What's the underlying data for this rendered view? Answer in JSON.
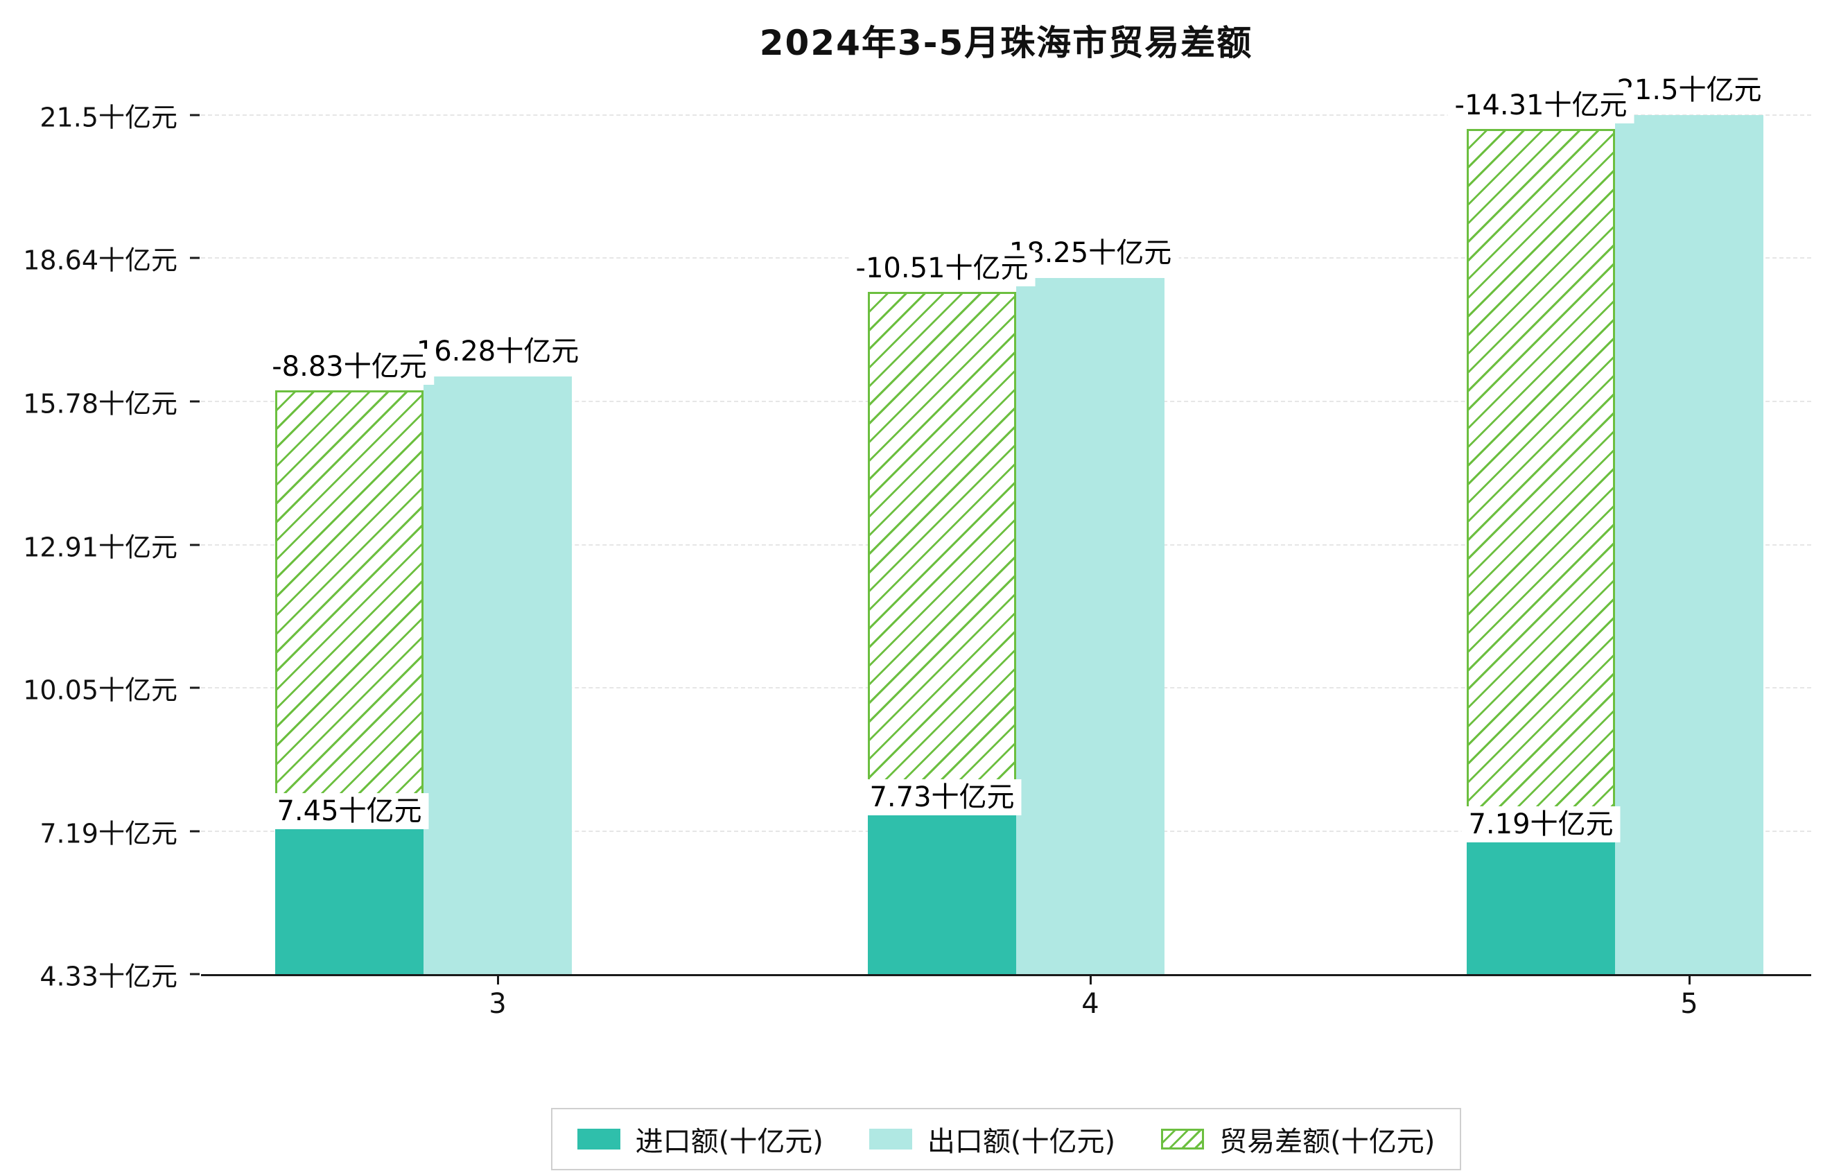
{
  "chart_data": {
    "type": "bar",
    "title": "2024年3-5月珠海市贸易差额",
    "categories": [
      "3",
      "4",
      "5"
    ],
    "series": [
      {
        "name": "进口额(十亿元)",
        "role": "import",
        "style": "solid",
        "color": "#2fbfab",
        "values": [
          7.45,
          7.73,
          7.19
        ],
        "labels": [
          "7.45十亿元",
          "7.73十亿元",
          "7.19十亿元"
        ]
      },
      {
        "name": "出口额(十亿元)",
        "role": "export",
        "style": "solid",
        "color": "#b0e8e3",
        "values": [
          16.28,
          18.25,
          21.5
        ],
        "labels": [
          "16.28十亿元",
          "18.25十亿元",
          "21.5十亿元"
        ]
      },
      {
        "name": "贸易差额(十亿元)",
        "role": "balance",
        "style": "hatched",
        "color": "#6cbf40",
        "values": [
          -8.83,
          -10.51,
          -14.31
        ],
        "labels": [
          "-8.83十亿元",
          "-10.51十亿元",
          "-14.31十亿元"
        ]
      }
    ],
    "value_suffix": "十亿元",
    "ylim": [
      4.33,
      21.5
    ],
    "y_ticks": [
      4.33,
      7.19,
      10.05,
      12.91,
      15.78,
      18.64,
      21.5
    ],
    "y_tick_labels": [
      "4.33十亿元",
      "7.19十亿元",
      "10.05十亿元",
      "12.91十亿元",
      "15.78十亿元",
      "18.64十亿元",
      "21.5十亿元"
    ],
    "x_tick_labels": [
      "3",
      "4",
      "5"
    ],
    "grid": true,
    "legend_position": "bottom"
  },
  "colors": {
    "import": "#2fbfab",
    "export": "#b0e8e3",
    "balance": "#6cbf40",
    "grid": "#e6e6e6",
    "axis": "#1a1a1a",
    "background": "#ffffff"
  }
}
